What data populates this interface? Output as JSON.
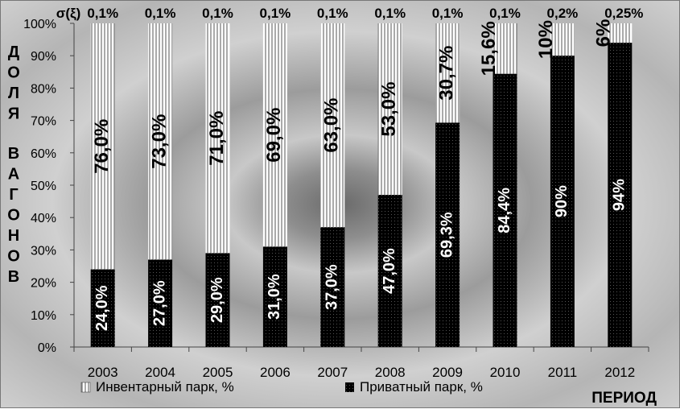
{
  "chart_data": {
    "type": "bar",
    "stacked": true,
    "ylabel": "ДОЛЯ ВАГОНОВ",
    "xlabel": "ПЕРИОД",
    "ylim": [
      0,
      100
    ],
    "y_ticks": [
      "0%",
      "10%",
      "20%",
      "30%",
      "40%",
      "50%",
      "60%",
      "70%",
      "80%",
      "90%",
      "100%"
    ],
    "categories": [
      "2003",
      "2004",
      "2005",
      "2006",
      "2007",
      "2008",
      "2009",
      "2010",
      "2011",
      "2012"
    ],
    "series": [
      {
        "name": "Приватный парк, %",
        "values": [
          24.0,
          27.0,
          29.0,
          31.0,
          37.0,
          47.0,
          69.3,
          84.4,
          90,
          94
        ],
        "labels": [
          "24,0%",
          "27,0%",
          "29,0%",
          "31,0%",
          "37,0%",
          "47,0%",
          "69,3%",
          "84,4%",
          "90%",
          "94%"
        ]
      },
      {
        "name": "Инвентарный парк, %",
        "values": [
          76.0,
          73.0,
          71.0,
          69.0,
          63.0,
          53.0,
          30.7,
          15.6,
          10,
          6
        ],
        "labels": [
          "76,0%",
          "73,0%",
          "71,0%",
          "69,0%",
          "63,0%",
          "53,0%",
          "30,7%",
          "15,6%",
          "10%",
          "6%"
        ]
      }
    ],
    "sigma_label": "σ(ξ)",
    "sigma_values": [
      "0,1%",
      "0,1%",
      "0,1%",
      "0,1%",
      "0,1%",
      "0,1%",
      "0,1%",
      "0,1%",
      "0,2%",
      "0,25%"
    ],
    "legend_position": "bottom",
    "grid": false
  }
}
